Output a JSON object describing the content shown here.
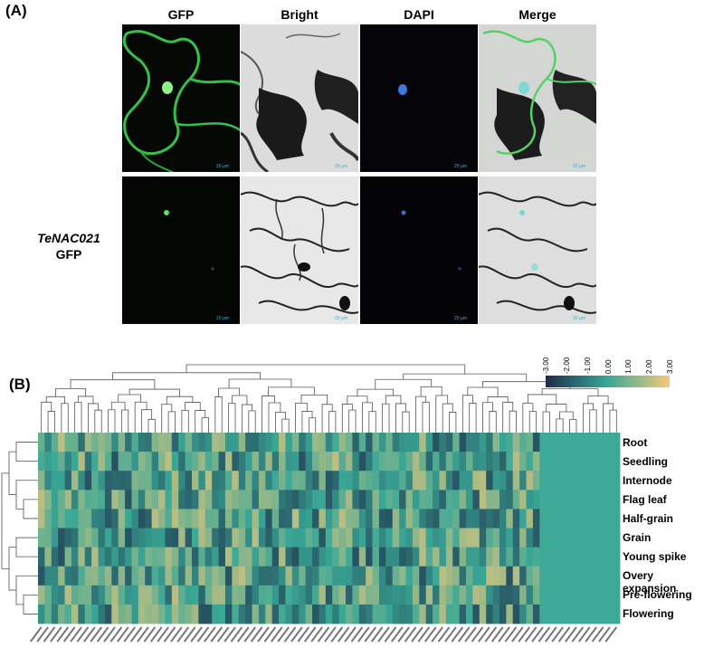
{
  "panel_a": {
    "letter": "(A)",
    "columns": [
      "GFP",
      "Bright",
      "DAPI",
      "Merge"
    ],
    "row_label": [
      "TeNAC021",
      "GFP"
    ],
    "scale_bar": "20 μm"
  },
  "panel_b": {
    "letter": "(B)",
    "colors": {
      "low": "#1e2c4a",
      "mid": "#3aa896",
      "high": "#f5c87a"
    }
  },
  "chart_data": {
    "type": "heatmap",
    "rows": [
      "Root",
      "Seedling",
      "Internode",
      "Flag leaf",
      "Half-grain",
      "Grain",
      "Young spike",
      "Overy expansion",
      "Pre-flowering",
      "Flowering"
    ],
    "n_columns": 87,
    "color_scale": {
      "ticks": [
        "-3.00",
        "-2.00",
        "-1.00",
        "0.00",
        "1.00",
        "2.00",
        "3.00"
      ],
      "range": [
        -3,
        3
      ]
    },
    "values_note": "z-score expression; per-cell values not legible",
    "constant_columns_tail": 12,
    "dendrograms": {
      "columns": true,
      "rows": true
    }
  }
}
